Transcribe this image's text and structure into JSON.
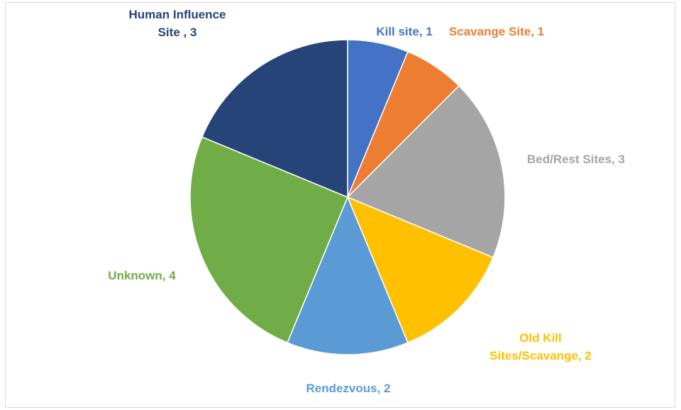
{
  "chart_data": {
    "type": "pie",
    "categories": [
      "Kill site",
      "Scavange Site",
      "Bed/Rest Sites",
      "Old Kill Sites/Scavange",
      "Rendezvous",
      "Unknown",
      "Human Influence Site "
    ],
    "values": [
      1,
      1,
      3,
      2,
      2,
      4,
      3
    ],
    "value_labels": [
      "Kill site, 1",
      "Scavange Site, 1",
      "Bed/Rest Sites, 3",
      "Old Kill Sites/Scavange, 2",
      "Rendezvous, 2",
      "Unknown, 4",
      "Human Influence Site , 3"
    ],
    "colors": [
      "#4472c4",
      "#ed7d31",
      "#a5a5a5",
      "#ffc000",
      "#5b9bd5",
      "#70ad47",
      "#264478"
    ]
  }
}
